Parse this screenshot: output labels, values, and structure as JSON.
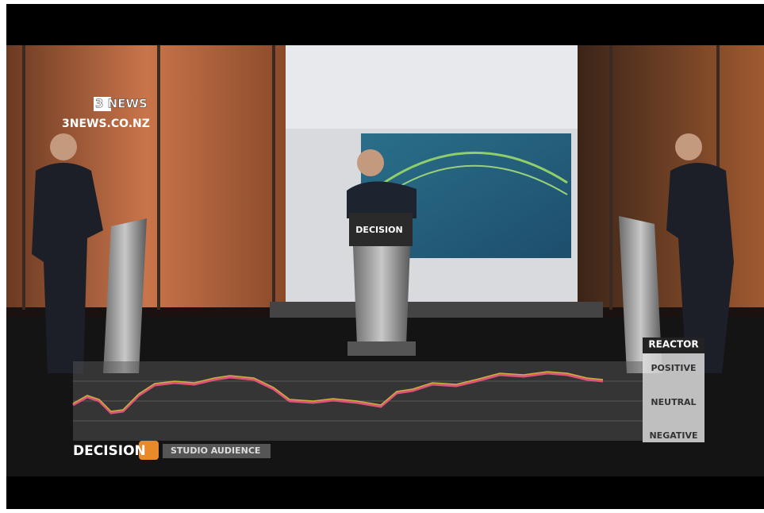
{
  "logo": {
    "channel": "3 NEWS",
    "website": "3NEWS.CO.NZ"
  },
  "set": {
    "podium_label": "DECISION"
  },
  "lower_third": {
    "program": "DECISION",
    "segment": "STUDIO AUDIENCE"
  },
  "reactor": {
    "title": "REACTOR",
    "positive": "POSITIVE",
    "neutral": "NEUTRAL",
    "negative": "NEGATIVE"
  }
}
